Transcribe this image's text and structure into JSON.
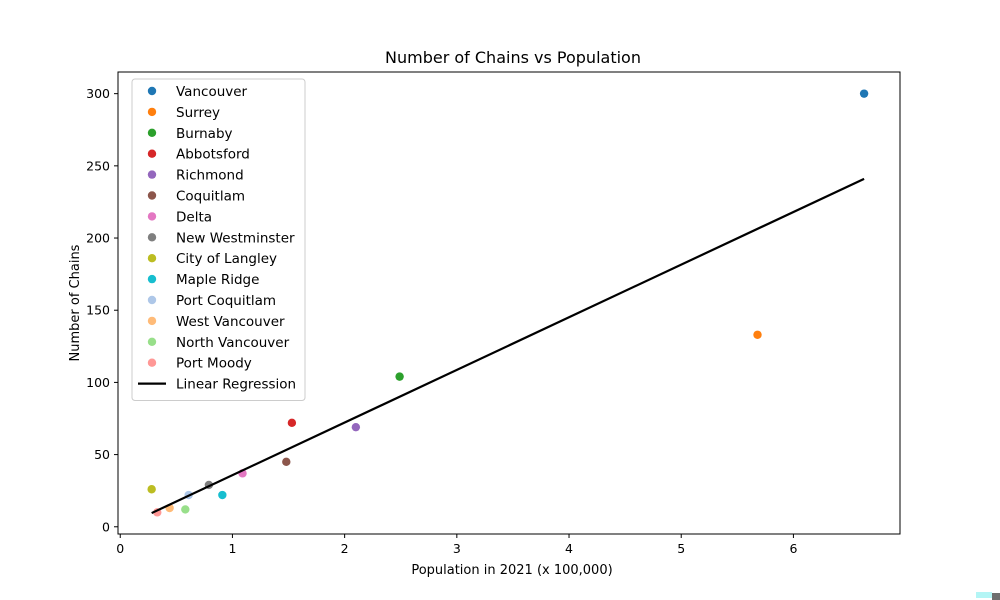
{
  "chart_data": {
    "type": "scatter",
    "title": "Number of Chains vs Population",
    "xlabel": "Population in 2021 (x 100,000)",
    "ylabel": "Number of Chains",
    "xlim": [
      -0.02,
      6.95
    ],
    "ylim": [
      -5,
      315
    ],
    "xticks": [
      0,
      1,
      2,
      3,
      4,
      5,
      6
    ],
    "yticks": [
      0,
      50,
      100,
      150,
      200,
      250,
      300
    ],
    "grid": false,
    "legend_position": "upper-left",
    "series": [
      {
        "name": "Vancouver",
        "color": "#1f77b4",
        "x": 6.63,
        "y": 300
      },
      {
        "name": "Surrey",
        "color": "#ff7f0e",
        "x": 5.68,
        "y": 133
      },
      {
        "name": "Burnaby",
        "color": "#2ca02c",
        "x": 2.49,
        "y": 104
      },
      {
        "name": "Abbotsford",
        "color": "#d62728",
        "x": 1.53,
        "y": 72
      },
      {
        "name": "Richmond",
        "color": "#9467bd",
        "x": 2.1,
        "y": 69
      },
      {
        "name": "Coquitlam",
        "color": "#8c564b",
        "x": 1.48,
        "y": 45
      },
      {
        "name": "Delta",
        "color": "#e377c2",
        "x": 1.09,
        "y": 37
      },
      {
        "name": "New Westminster",
        "color": "#7f7f7f",
        "x": 0.79,
        "y": 29
      },
      {
        "name": "City of Langley",
        "color": "#bcbd22",
        "x": 0.28,
        "y": 26
      },
      {
        "name": "Maple Ridge",
        "color": "#17becf",
        "x": 0.91,
        "y": 22
      },
      {
        "name": "Port Coquitlam",
        "color": "#aec7e8",
        "x": 0.61,
        "y": 22
      },
      {
        "name": "West Vancouver",
        "color": "#ffbb78",
        "x": 0.44,
        "y": 13
      },
      {
        "name": "North Vancouver",
        "color": "#98df8a",
        "x": 0.58,
        "y": 12
      },
      {
        "name": "Port Moody",
        "color": "#ff9896",
        "x": 0.33,
        "y": 10
      }
    ],
    "regression": {
      "name": "Linear Regression",
      "color": "#000000",
      "x": [
        0.28,
        6.63
      ],
      "y": [
        9.5,
        241
      ]
    }
  }
}
